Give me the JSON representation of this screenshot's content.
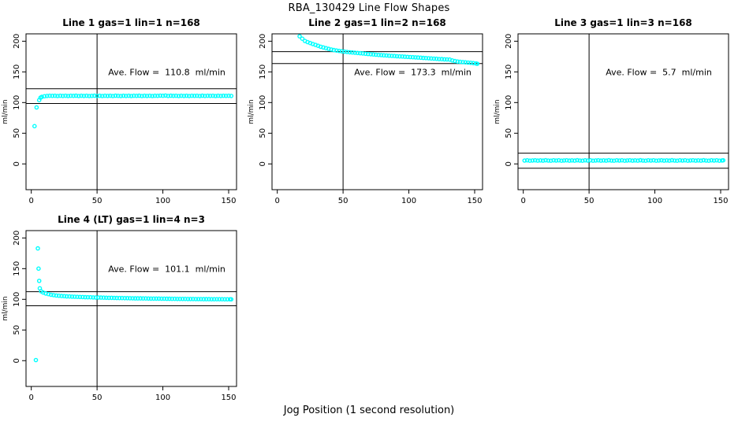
{
  "figure": {
    "title": "RBA_130429  Line Flow Shapes",
    "xlabel": "Jog Position (1 second resolution)",
    "point_color": "#00FFFF",
    "line_color": "#000000",
    "background": "#FFFFFF"
  },
  "chart_data": [
    {
      "type": "scatter",
      "title": "Line 1 gas=1 lin=1 n=168",
      "ylabel": "ml/min",
      "annotation": "Ave. Flow =  110.8  ml/min",
      "ave_flow": 110.8,
      "xlim": [
        -4,
        156
      ],
      "ylim": [
        -42,
        212
      ],
      "xticks": [
        0,
        50,
        100,
        150
      ],
      "yticks": [
        0,
        50,
        100,
        150,
        200
      ],
      "vline": 50,
      "hlines": [
        122.5,
        98.5
      ],
      "annotation_pos": [
        103,
        150
      ],
      "points": [
        [
          2.5,
          61.5
        ],
        [
          4,
          92
        ],
        [
          6,
          104
        ],
        [
          7,
          108
        ],
        [
          8,
          109.2
        ],
        [
          10,
          110.3
        ],
        [
          12,
          110.8
        ],
        [
          14,
          111
        ],
        [
          16,
          110.9
        ],
        [
          18,
          111.1
        ],
        [
          20,
          110.7
        ],
        [
          22,
          111
        ],
        [
          24,
          110.8
        ],
        [
          26,
          111.1
        ],
        [
          28,
          110.6
        ],
        [
          30,
          111
        ],
        [
          32,
          110.9
        ],
        [
          34,
          111.2
        ],
        [
          36,
          110.7
        ],
        [
          38,
          111
        ],
        [
          40,
          110.8
        ],
        [
          42,
          111.1
        ],
        [
          44,
          110.6
        ],
        [
          46,
          110.9
        ],
        [
          48,
          111.2
        ],
        [
          50,
          110.8
        ],
        [
          52,
          111
        ],
        [
          54,
          110.7
        ],
        [
          56,
          111.1
        ],
        [
          58,
          110.8
        ],
        [
          60,
          111
        ],
        [
          62,
          110.6
        ],
        [
          64,
          111.2
        ],
        [
          66,
          110.9
        ],
        [
          68,
          110.7
        ],
        [
          70,
          111
        ],
        [
          72,
          110.8
        ],
        [
          74,
          111.1
        ],
        [
          76,
          110.6
        ],
        [
          78,
          111
        ],
        [
          80,
          110.9
        ],
        [
          82,
          111.2
        ],
        [
          84,
          110.7
        ],
        [
          86,
          111
        ],
        [
          88,
          110.8
        ],
        [
          90,
          111.1
        ],
        [
          92,
          110.6
        ],
        [
          94,
          111
        ],
        [
          96,
          110.9
        ],
        [
          98,
          111.3
        ],
        [
          100,
          111
        ],
        [
          102,
          111.4
        ],
        [
          104,
          110.8
        ],
        [
          106,
          111.2
        ],
        [
          108,
          110.9
        ],
        [
          110,
          111
        ],
        [
          112,
          110.7
        ],
        [
          114,
          111.1
        ],
        [
          116,
          110.8
        ],
        [
          118,
          111
        ],
        [
          120,
          110.6
        ],
        [
          122,
          111.1
        ],
        [
          124,
          110.9
        ],
        [
          126,
          111
        ],
        [
          128,
          110.7
        ],
        [
          130,
          111.2
        ],
        [
          132,
          110.8
        ],
        [
          134,
          111
        ],
        [
          136,
          110.9
        ],
        [
          138,
          111.1
        ],
        [
          140,
          110.7
        ],
        [
          142,
          111
        ],
        [
          144,
          110.8
        ],
        [
          146,
          111.1
        ],
        [
          148,
          110.9
        ],
        [
          150,
          111
        ],
        [
          152,
          110.8
        ]
      ]
    },
    {
      "type": "scatter",
      "title": "Line 2 gas=1 lin=2 n=168",
      "ylabel": "ml/min",
      "annotation": "Ave. Flow =  173.3  ml/min",
      "ave_flow": 173.3,
      "xlim": [
        -4,
        156
      ],
      "ylim": [
        -42,
        212
      ],
      "xticks": [
        0,
        50,
        100,
        150
      ],
      "yticks": [
        0,
        50,
        100,
        150,
        200
      ],
      "vline": 50,
      "hlines": [
        183,
        163.5
      ],
      "annotation_pos": [
        103,
        150
      ],
      "points": [
        [
          17,
          208
        ],
        [
          19,
          204
        ],
        [
          21,
          200.5
        ],
        [
          23,
          198.5
        ],
        [
          25,
          197
        ],
        [
          27,
          195.5
        ],
        [
          29,
          194
        ],
        [
          31,
          192.5
        ],
        [
          33,
          191
        ],
        [
          35,
          189.8
        ],
        [
          37,
          188.6
        ],
        [
          39,
          187.5
        ],
        [
          41,
          186.5
        ],
        [
          43,
          185.6
        ],
        [
          45,
          184.8
        ],
        [
          47,
          184.1
        ],
        [
          49,
          183.5
        ],
        [
          51,
          183
        ],
        [
          53,
          182.5
        ],
        [
          55,
          182
        ],
        [
          57,
          181.6
        ],
        [
          59,
          181.2
        ],
        [
          61,
          180.8
        ],
        [
          63,
          180.4
        ],
        [
          65,
          180
        ],
        [
          67,
          179.6
        ],
        [
          69,
          179.2
        ],
        [
          71,
          178.8
        ],
        [
          73,
          178.4
        ],
        [
          75,
          178
        ],
        [
          77,
          177.6
        ],
        [
          79,
          177.3
        ],
        [
          81,
          177
        ],
        [
          83,
          176.7
        ],
        [
          85,
          176.4
        ],
        [
          87,
          176.1
        ],
        [
          89,
          175.8
        ],
        [
          91,
          175.5
        ],
        [
          93,
          175.2
        ],
        [
          95,
          175
        ],
        [
          97,
          174.7
        ],
        [
          99,
          174.4
        ],
        [
          101,
          174.2
        ],
        [
          103,
          173.9
        ],
        [
          105,
          173.7
        ],
        [
          107,
          173.4
        ],
        [
          109,
          173.1
        ],
        [
          111,
          172.8
        ],
        [
          113,
          172.5
        ],
        [
          115,
          172.2
        ],
        [
          117,
          171.9
        ],
        [
          119,
          171.6
        ],
        [
          121,
          171.3
        ],
        [
          123,
          171
        ],
        [
          125,
          170.8
        ],
        [
          127,
          170.5
        ],
        [
          129,
          170.3
        ],
        [
          131,
          170.1
        ],
        [
          133,
          168.6
        ],
        [
          135,
          167.6
        ],
        [
          137,
          166.9
        ],
        [
          139,
          166.4
        ],
        [
          141,
          166
        ],
        [
          143,
          165.6
        ],
        [
          145,
          165.2
        ],
        [
          147,
          164.8
        ],
        [
          149,
          164.3
        ],
        [
          151,
          163.7
        ],
        [
          152,
          163.2
        ]
      ]
    },
    {
      "type": "scatter",
      "title": "Line 3 gas=1 lin=3 n=168",
      "ylabel": "ml/min",
      "annotation": "Ave. Flow =  5.7  ml/min",
      "ave_flow": 5.7,
      "xlim": [
        -4,
        156
      ],
      "ylim": [
        -42,
        212
      ],
      "xticks": [
        0,
        50,
        100,
        150
      ],
      "yticks": [
        0,
        50,
        100,
        150,
        200
      ],
      "vline": 50,
      "hlines": [
        17.5,
        -7
      ],
      "annotation_pos": [
        103,
        150
      ],
      "points": [
        [
          1,
          5.5
        ],
        [
          3,
          5.8
        ],
        [
          5,
          5.2
        ],
        [
          7,
          5.6
        ],
        [
          9,
          5.9
        ],
        [
          11,
          5.3
        ],
        [
          13,
          5.7
        ],
        [
          15,
          5.4
        ],
        [
          17,
          6
        ],
        [
          19,
          5.5
        ],
        [
          21,
          5.2
        ],
        [
          23,
          5.8
        ],
        [
          25,
          5.5
        ],
        [
          27,
          5.8
        ],
        [
          29,
          5.2
        ],
        [
          31,
          5.6
        ],
        [
          33,
          5.9
        ],
        [
          35,
          5.3
        ],
        [
          37,
          5.7
        ],
        [
          39,
          5.4
        ],
        [
          41,
          6
        ],
        [
          43,
          5.5
        ],
        [
          45,
          5.2
        ],
        [
          47,
          5.8
        ],
        [
          49,
          5.5
        ],
        [
          51,
          5.8
        ],
        [
          53,
          5.2
        ],
        [
          55,
          5.6
        ],
        [
          57,
          5.9
        ],
        [
          59,
          5.3
        ],
        [
          61,
          5.7
        ],
        [
          63,
          5.4
        ],
        [
          65,
          6
        ],
        [
          67,
          5.5
        ],
        [
          69,
          5.2
        ],
        [
          71,
          5.8
        ],
        [
          73,
          5.5
        ],
        [
          75,
          5.8
        ],
        [
          77,
          5.2
        ],
        [
          79,
          5.6
        ],
        [
          81,
          5.9
        ],
        [
          83,
          5.3
        ],
        [
          85,
          5.7
        ],
        [
          87,
          5.4
        ],
        [
          89,
          6
        ],
        [
          91,
          5.5
        ],
        [
          93,
          5.2
        ],
        [
          95,
          5.8
        ],
        [
          97,
          5.5
        ],
        [
          99,
          5.8
        ],
        [
          101,
          5.2
        ],
        [
          103,
          5.6
        ],
        [
          105,
          5.9
        ],
        [
          107,
          5.3
        ],
        [
          109,
          5.7
        ],
        [
          111,
          5.4
        ],
        [
          113,
          6
        ],
        [
          115,
          5.5
        ],
        [
          117,
          5.2
        ],
        [
          119,
          5.8
        ],
        [
          121,
          5.5
        ],
        [
          123,
          5.8
        ],
        [
          125,
          5.2
        ],
        [
          127,
          5.6
        ],
        [
          129,
          5.9
        ],
        [
          131,
          5.3
        ],
        [
          133,
          5.7
        ],
        [
          135,
          5.4
        ],
        [
          137,
          6
        ],
        [
          139,
          5.5
        ],
        [
          141,
          5.2
        ],
        [
          143,
          5.8
        ],
        [
          145,
          5.5
        ],
        [
          147,
          5.8
        ],
        [
          149,
          5.2
        ],
        [
          151,
          5.6
        ],
        [
          152,
          5.9
        ]
      ]
    },
    {
      "type": "scatter",
      "title": "Line 4 (LT) gas=1 lin=4 n=3",
      "ylabel": "ml/min",
      "annotation": "Ave. Flow =  101.1  ml/min",
      "ave_flow": 101.1,
      "xlim": [
        -4,
        156
      ],
      "ylim": [
        -42,
        212
      ],
      "xticks": [
        0,
        50,
        100,
        150
      ],
      "yticks": [
        0,
        50,
        100,
        150,
        200
      ],
      "vline": 50,
      "hlines": [
        112.5,
        89.5
      ],
      "annotation_pos": [
        103,
        150
      ],
      "points": [
        [
          3.5,
          1
        ],
        [
          5,
          183
        ],
        [
          5.5,
          150
        ],
        [
          6,
          130
        ],
        [
          6.5,
          118
        ],
        [
          7.5,
          113
        ],
        [
          9,
          111
        ],
        [
          11,
          109.5
        ],
        [
          13,
          108.5
        ],
        [
          15,
          107.5
        ],
        [
          17,
          106.8
        ],
        [
          19,
          106.2
        ],
        [
          21,
          105.8
        ],
        [
          23,
          105.4
        ],
        [
          25,
          105.1
        ],
        [
          27,
          104.8
        ],
        [
          29,
          104.6
        ],
        [
          31,
          104.4
        ],
        [
          33,
          104.2
        ],
        [
          35,
          104
        ],
        [
          37,
          103.8
        ],
        [
          39,
          103.7
        ],
        [
          41,
          103.5
        ],
        [
          43,
          103.4
        ],
        [
          45,
          103.3
        ],
        [
          47,
          103.1
        ],
        [
          49,
          103
        ],
        [
          51,
          102.9
        ],
        [
          53,
          102.8
        ],
        [
          55,
          102.7
        ],
        [
          57,
          102.6
        ],
        [
          59,
          102.5
        ],
        [
          61,
          102.4
        ],
        [
          63,
          102.3
        ],
        [
          65,
          102.2
        ],
        [
          67,
          102.1
        ],
        [
          69,
          102
        ],
        [
          71,
          101.9
        ],
        [
          73,
          101.9
        ],
        [
          75,
          101.8
        ],
        [
          77,
          101.7
        ],
        [
          79,
          101.6
        ],
        [
          81,
          101.6
        ],
        [
          83,
          101.5
        ],
        [
          85,
          101.4
        ],
        [
          87,
          101.4
        ],
        [
          89,
          101.3
        ],
        [
          91,
          101.2
        ],
        [
          93,
          101.2
        ],
        [
          95,
          101.1
        ],
        [
          97,
          101.1
        ],
        [
          99,
          101
        ],
        [
          101,
          101
        ],
        [
          103,
          100.9
        ],
        [
          105,
          100.9
        ],
        [
          107,
          100.8
        ],
        [
          109,
          100.8
        ],
        [
          111,
          100.7
        ],
        [
          113,
          100.7
        ],
        [
          115,
          100.6
        ],
        [
          117,
          100.6
        ],
        [
          119,
          100.5
        ],
        [
          121,
          100.5
        ],
        [
          123,
          100.5
        ],
        [
          125,
          100.4
        ],
        [
          127,
          100.4
        ],
        [
          129,
          100.4
        ],
        [
          131,
          100.3
        ],
        [
          133,
          100.3
        ],
        [
          135,
          100.3
        ],
        [
          137,
          100.2
        ],
        [
          139,
          100.2
        ],
        [
          141,
          100.1
        ],
        [
          143,
          100.1
        ],
        [
          145,
          100.1
        ],
        [
          147,
          100
        ],
        [
          149,
          100
        ],
        [
          151,
          100
        ],
        [
          152,
          100
        ]
      ]
    }
  ]
}
